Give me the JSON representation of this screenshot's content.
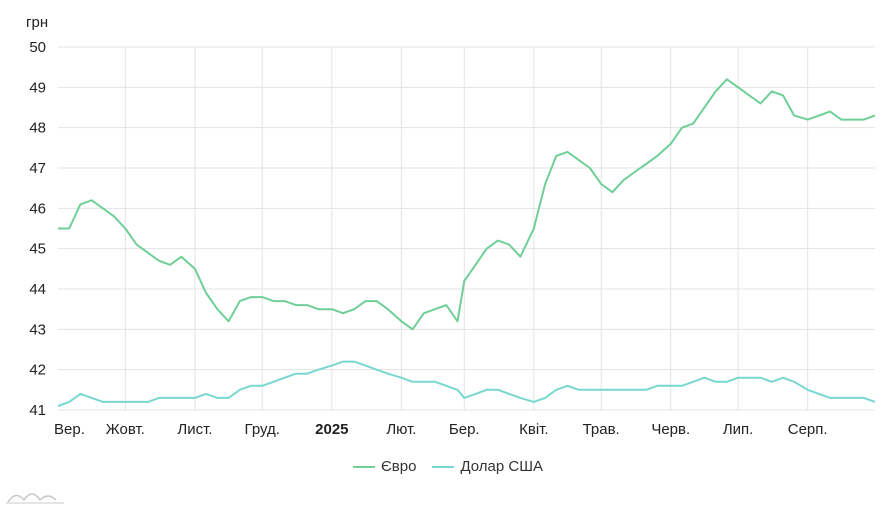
{
  "chart_data": {
    "type": "line",
    "ylabel": "грн",
    "ylim": [
      41,
      50
    ],
    "yticks": [
      50,
      49,
      48,
      47,
      46,
      45,
      44,
      43,
      42,
      41
    ],
    "grid": true,
    "legend_position": "bottom-center",
    "x_tick_labels": [
      {
        "label": "Вер.",
        "bold": false
      },
      {
        "label": "Жовт.",
        "bold": false
      },
      {
        "label": "Лист.",
        "bold": false
      },
      {
        "label": "Груд.",
        "bold": false
      },
      {
        "label": "2025",
        "bold": true
      },
      {
        "label": "Лют.",
        "bold": false
      },
      {
        "label": "Бер.",
        "bold": false
      },
      {
        "label": "Квіт.",
        "bold": false
      },
      {
        "label": "Трав.",
        "bold": false
      },
      {
        "label": "Черв.",
        "bold": false
      },
      {
        "label": "Лип.",
        "bold": false
      },
      {
        "label": "Серп.",
        "bold": false
      }
    ],
    "x": [
      "2024-09-01",
      "2024-09-06",
      "2024-09-11",
      "2024-09-16",
      "2024-09-21",
      "2024-09-26",
      "2024-10-01",
      "2024-10-06",
      "2024-10-11",
      "2024-10-16",
      "2024-10-21",
      "2024-10-26",
      "2024-11-01",
      "2024-11-06",
      "2024-11-11",
      "2024-11-16",
      "2024-11-21",
      "2024-11-26",
      "2024-12-01",
      "2024-12-06",
      "2024-12-11",
      "2024-12-16",
      "2024-12-21",
      "2024-12-26",
      "2025-01-01",
      "2025-01-06",
      "2025-01-11",
      "2025-01-16",
      "2025-01-21",
      "2025-01-26",
      "2025-02-01",
      "2025-02-06",
      "2025-02-11",
      "2025-02-16",
      "2025-02-21",
      "2025-02-26",
      "2025-03-01",
      "2025-03-06",
      "2025-03-11",
      "2025-03-16",
      "2025-03-21",
      "2025-03-26",
      "2025-04-01",
      "2025-04-06",
      "2025-04-11",
      "2025-04-16",
      "2025-04-21",
      "2025-04-26",
      "2025-05-01",
      "2025-05-06",
      "2025-05-11",
      "2025-05-16",
      "2025-05-21",
      "2025-05-26",
      "2025-06-01",
      "2025-06-06",
      "2025-06-11",
      "2025-06-16",
      "2025-06-21",
      "2025-06-26",
      "2025-07-01",
      "2025-07-06",
      "2025-07-11",
      "2025-07-16",
      "2025-07-21",
      "2025-07-26",
      "2025-08-01",
      "2025-08-06",
      "2025-08-11",
      "2025-08-16",
      "2025-08-21",
      "2025-08-26",
      "2025-08-31"
    ],
    "series": [
      {
        "name": "Євро",
        "color": "#6fcf97",
        "values": [
          45.5,
          45.5,
          46.1,
          46.2,
          46.0,
          45.8,
          45.5,
          45.1,
          44.9,
          44.7,
          44.6,
          44.8,
          44.5,
          43.9,
          43.5,
          43.2,
          43.7,
          43.8,
          43.8,
          43.7,
          43.7,
          43.6,
          43.6,
          43.5,
          43.5,
          43.4,
          43.5,
          43.7,
          43.7,
          43.5,
          43.2,
          43.0,
          43.4,
          43.5,
          43.6,
          43.2,
          44.2,
          44.6,
          45.0,
          45.2,
          45.1,
          44.8,
          45.5,
          46.6,
          47.3,
          47.4,
          47.2,
          47.0,
          46.6,
          46.4,
          46.7,
          46.9,
          47.1,
          47.3,
          47.6,
          48.0,
          48.1,
          48.5,
          48.9,
          49.2,
          49.0,
          48.8,
          48.6,
          48.9,
          48.8,
          48.3,
          48.2,
          48.3,
          48.4,
          48.2,
          48.2,
          48.2,
          48.3
        ]
      },
      {
        "name": "Долар США",
        "color": "#78d8d0",
        "values": [
          41.1,
          41.2,
          41.4,
          41.3,
          41.2,
          41.2,
          41.2,
          41.2,
          41.2,
          41.3,
          41.3,
          41.3,
          41.3,
          41.4,
          41.3,
          41.3,
          41.5,
          41.6,
          41.6,
          41.7,
          41.8,
          41.9,
          41.9,
          42.0,
          42.1,
          42.2,
          42.2,
          42.1,
          42.0,
          41.9,
          41.8,
          41.7,
          41.7,
          41.7,
          41.6,
          41.5,
          41.3,
          41.4,
          41.5,
          41.5,
          41.4,
          41.3,
          41.2,
          41.3,
          41.5,
          41.6,
          41.5,
          41.5,
          41.5,
          41.5,
          41.5,
          41.5,
          41.5,
          41.6,
          41.6,
          41.6,
          41.7,
          41.8,
          41.7,
          41.7,
          41.8,
          41.8,
          41.8,
          41.7,
          41.8,
          41.7,
          41.5,
          41.4,
          41.3,
          41.3,
          41.3,
          41.3,
          41.2
        ]
      }
    ]
  }
}
